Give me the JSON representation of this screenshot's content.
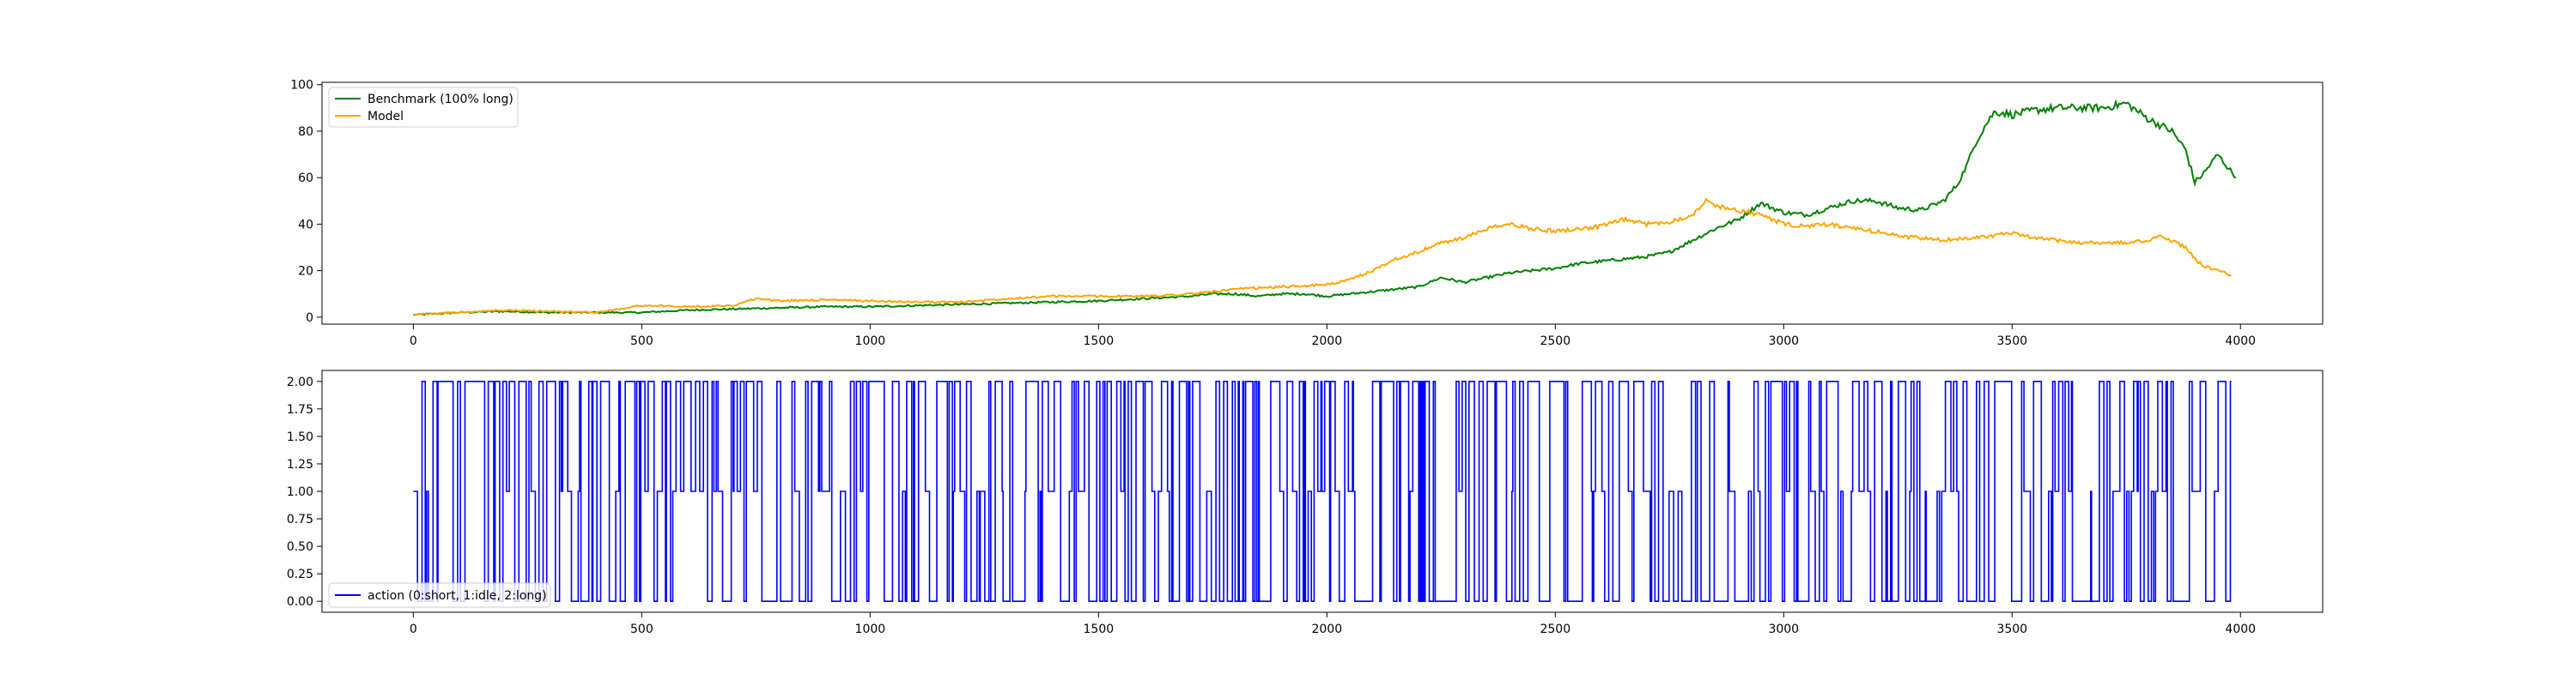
{
  "chart_data": [
    {
      "type": "line",
      "title": "",
      "xlabel": "",
      "ylabel": "",
      "xlim": [
        -200,
        4180
      ],
      "ylim": [
        -3,
        101
      ],
      "grid": false,
      "legend_placement": "top-left",
      "xticks": [
        0,
        500,
        1000,
        1500,
        2000,
        2500,
        3000,
        3500,
        4000
      ],
      "yticks": [
        0,
        20,
        40,
        60,
        80,
        100
      ],
      "series": [
        {
          "name": "Benchmark (100% long)",
          "color": "#008000",
          "x": [
            0,
            100,
            200,
            300,
            400,
            500,
            600,
            700,
            800,
            900,
            1000,
            1100,
            1200,
            1300,
            1400,
            1500,
            1600,
            1700,
            1750,
            1800,
            1850,
            1900,
            1950,
            2000,
            2050,
            2100,
            2150,
            2200,
            2250,
            2300,
            2350,
            2400,
            2450,
            2500,
            2550,
            2600,
            2650,
            2700,
            2750,
            2800,
            2850,
            2900,
            2950,
            3000,
            3050,
            3100,
            3150,
            3200,
            3250,
            3300,
            3350,
            3380,
            3400,
            3420,
            3440,
            3460,
            3480,
            3500,
            3550,
            3600,
            3650,
            3700,
            3750,
            3800,
            3850,
            3880,
            3900,
            3920,
            3950,
            3970,
            3990
          ],
          "y": [
            1,
            2,
            2.5,
            2,
            2,
            2,
            3,
            3.5,
            4,
            4.5,
            4.5,
            5,
            5.5,
            6,
            6.5,
            7,
            8,
            9,
            10,
            10,
            9,
            10,
            10,
            9,
            10,
            11,
            12,
            13,
            17,
            15,
            17,
            19,
            20,
            21,
            23,
            24,
            25,
            26,
            28,
            33,
            38,
            42,
            49,
            45,
            44,
            47,
            50,
            50,
            47,
            46,
            50,
            57,
            65,
            75,
            82,
            88,
            88,
            87,
            89,
            90,
            90,
            90,
            92,
            85,
            80,
            72,
            58,
            62,
            70,
            65,
            60
          ]
        },
        {
          "name": "Model",
          "color": "#FFA500",
          "x": [
            0,
            100,
            200,
            300,
            400,
            500,
            600,
            700,
            750,
            800,
            900,
            1000,
            1100,
            1200,
            1300,
            1400,
            1500,
            1600,
            1700,
            1800,
            1900,
            2000,
            2050,
            2100,
            2150,
            2200,
            2250,
            2300,
            2350,
            2400,
            2450,
            2500,
            2550,
            2600,
            2650,
            2700,
            2750,
            2800,
            2830,
            2850,
            2900,
            2950,
            3000,
            3050,
            3100,
            3150,
            3200,
            3250,
            3300,
            3350,
            3400,
            3450,
            3500,
            3550,
            3600,
            3650,
            3700,
            3750,
            3800,
            3820,
            3850,
            3880,
            3900,
            3920,
            3950,
            3980
          ],
          "y": [
            1,
            2,
            3,
            2.5,
            2,
            5,
            4.5,
            5,
            8,
            7,
            7.5,
            7,
            6.5,
            6.5,
            8,
            9,
            9,
            9,
            10,
            12,
            13,
            14,
            16,
            20,
            25,
            28,
            32,
            34,
            38,
            40,
            38,
            37,
            38,
            39,
            42,
            40,
            41,
            44,
            50,
            48,
            46,
            44,
            40,
            39,
            40,
            38,
            37,
            35,
            34,
            33,
            34,
            35,
            36,
            34,
            33,
            32,
            32,
            32,
            33,
            35,
            33,
            30,
            25,
            22,
            20,
            18
          ]
        }
      ]
    },
    {
      "type": "line",
      "title": "",
      "xlabel": "",
      "ylabel": "",
      "xlim": [
        -200,
        4180
      ],
      "ylim": [
        -0.1,
        2.1
      ],
      "grid": false,
      "legend_placement": "bottom-left",
      "xticks": [
        0,
        500,
        1000,
        1500,
        2000,
        2500,
        3000,
        3500,
        4000
      ],
      "yticks": [
        "0.00",
        "0.25",
        "0.50",
        "0.75",
        "1.00",
        "1.25",
        "1.50",
        "1.75",
        "2.00"
      ],
      "series": [
        {
          "name": "action (0:short, 1:idle, 2:long)",
          "color": "#0000FF",
          "x_range": [
            0,
            3980
          ],
          "values": [
            0,
            1,
            2
          ]
        }
      ]
    }
  ]
}
